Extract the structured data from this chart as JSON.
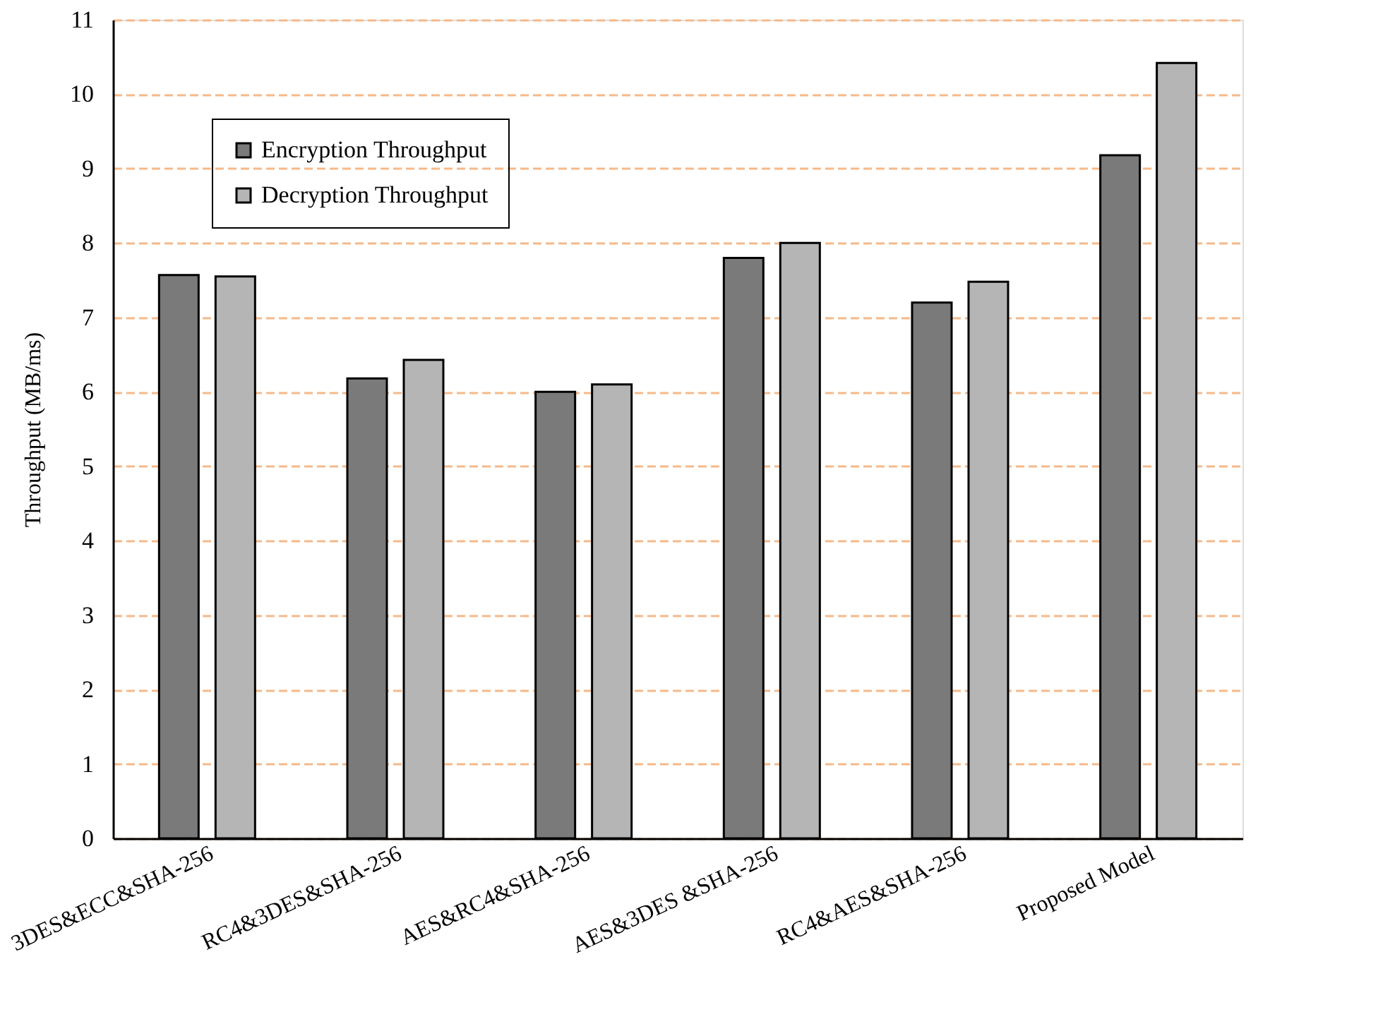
{
  "chart_data": {
    "type": "bar",
    "ylabel": "Throughput (MB/ms)",
    "categories": [
      "3DES&ECC&SHA-256",
      "RC4&3DES&SHA-256",
      "AES&RC4&SHA-256",
      "AES&3DES &SHA-256",
      "RC4&AES&SHA-256",
      "Proposed Model"
    ],
    "series": [
      {
        "name": "Encryption Throughput",
        "color": "#7a7a7a",
        "values": [
          7.57,
          6.18,
          6.0,
          7.8,
          7.2,
          9.18
        ]
      },
      {
        "name": "Decryption Throughput",
        "color": "#b5b5b5",
        "values": [
          7.55,
          6.43,
          6.1,
          8.0,
          7.48,
          10.42
        ]
      }
    ],
    "ylim": [
      0,
      11
    ],
    "yticks": [
      0,
      1,
      2,
      3,
      4,
      5,
      6,
      7,
      8,
      9,
      10,
      11
    ],
    "grid": "y",
    "legend": "top left"
  }
}
